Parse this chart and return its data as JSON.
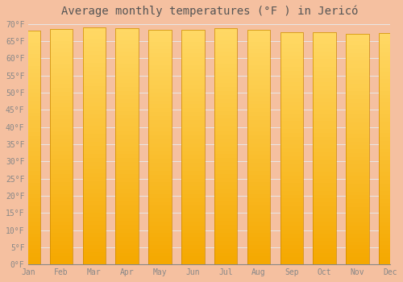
{
  "title": "Average monthly temperatures (°F ) in Jericó",
  "months": [
    "Jan",
    "Feb",
    "Mar",
    "Apr",
    "May",
    "Jun",
    "Jul",
    "Aug",
    "Sep",
    "Oct",
    "Nov",
    "Dec"
  ],
  "values": [
    68.0,
    68.5,
    69.0,
    68.7,
    68.2,
    68.2,
    68.7,
    68.2,
    67.6,
    67.6,
    67.1,
    67.3
  ],
  "bar_color_bottom": "#F5A800",
  "bar_color_top": "#FFD966",
  "bar_edge_color": "#CC8800",
  "background_color": "#F5C0A0",
  "plot_bg_color": "#F5C0A0",
  "grid_color": "#E8E8E8",
  "ylim": [
    0,
    70
  ],
  "yticks": [
    0,
    5,
    10,
    15,
    20,
    25,
    30,
    35,
    40,
    45,
    50,
    55,
    60,
    65,
    70
  ],
  "title_fontsize": 10,
  "tick_fontsize": 7,
  "tick_color": "#888888",
  "axis_color": "#888888",
  "title_color": "#555555"
}
